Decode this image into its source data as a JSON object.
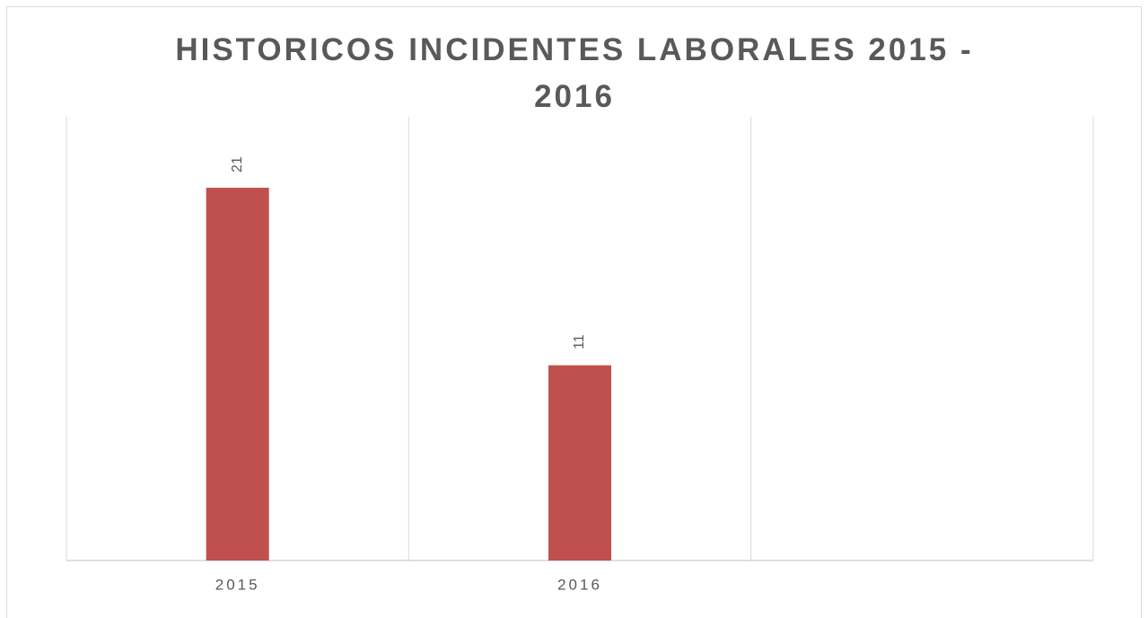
{
  "chart_data": {
    "type": "bar",
    "title": "HISTORICOS INCIDENTES LABORALES 2015 - 2016",
    "categories": [
      "2015",
      "2016",
      null
    ],
    "values": [
      21,
      11,
      null
    ],
    "color": "#c0504d",
    "ylim": [
      0,
      25
    ],
    "grid": false,
    "category_grid": true
  }
}
